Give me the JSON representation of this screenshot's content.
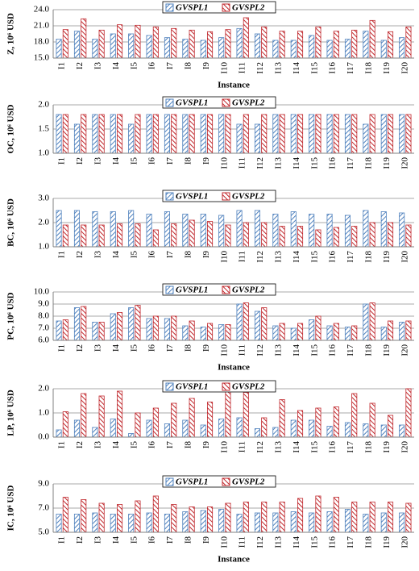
{
  "chart_data": [
    {
      "type": "bar",
      "y_label": "Z, 10⁶ USD",
      "x_label": "Instance",
      "categories": [
        "I1",
        "I2",
        "I3",
        "I4",
        "I5",
        "I6",
        "I7",
        "I8",
        "I9",
        "I10",
        "I11",
        "I12",
        "I13",
        "I14",
        "I15",
        "I16",
        "I17",
        "I18",
        "I19",
        "I20"
      ],
      "series": [
        {
          "name": "GVSPL1",
          "color": "#4f81bd",
          "values": [
            18.5,
            20.0,
            18.5,
            19.5,
            19.5,
            19.2,
            18.8,
            18.5,
            18.3,
            18.8,
            20.5,
            19.5,
            18.3,
            18.3,
            19.2,
            18.3,
            18.5,
            20.0,
            18.3,
            18.8
          ]
        },
        {
          "name": "GVSPL2",
          "color": "#c0282d",
          "values": [
            20.3,
            22.3,
            20.2,
            21.2,
            21.1,
            20.8,
            20.5,
            20.2,
            19.9,
            20.3,
            22.5,
            20.8,
            20.0,
            20.0,
            20.8,
            20.0,
            20.2,
            22.0,
            19.9,
            20.8
          ]
        }
      ],
      "ylim": [
        15,
        24
      ],
      "yticks": [
        {
          "value": 15,
          "label": "15.0"
        },
        {
          "value": 18,
          "label": "18.0"
        },
        {
          "value": 21,
          "label": "21.0"
        },
        {
          "value": 24,
          "label": "24.0"
        }
      ],
      "grid": true
    },
    {
      "type": "bar",
      "y_label": "OC, 10⁶ USD",
      "categories": [
        "I1",
        "I2",
        "I3",
        "I4",
        "I5",
        "I6",
        "I7",
        "I8",
        "I9",
        "I10",
        "I11",
        "I12",
        "I13",
        "I14",
        "I15",
        "I16",
        "I17",
        "I18",
        "I19",
        "I20"
      ],
      "series": [
        {
          "name": "GVSPL1",
          "color": "#4f81bd",
          "values": [
            1.8,
            1.6,
            1.8,
            1.8,
            1.6,
            1.8,
            1.8,
            1.8,
            1.8,
            1.8,
            1.6,
            1.6,
            1.8,
            1.8,
            1.8,
            1.8,
            1.8,
            1.6,
            1.8,
            1.8
          ]
        },
        {
          "name": "GVSPL2",
          "color": "#c0282d",
          "values": [
            1.8,
            1.8,
            1.8,
            1.8,
            1.8,
            1.8,
            1.8,
            1.8,
            1.8,
            1.8,
            1.8,
            1.8,
            1.8,
            1.8,
            1.8,
            1.8,
            1.8,
            1.8,
            1.8,
            1.8
          ]
        }
      ],
      "ylim": [
        1,
        2
      ],
      "yticks": [
        {
          "value": 1,
          "label": "1.0"
        },
        1.5,
        {
          "value": 2,
          "label": "2.0"
        }
      ],
      "grid": true
    },
    {
      "type": "bar",
      "y_label": "BC, 10⁶ USD",
      "categories": [
        "I1",
        "I2",
        "I3",
        "I4",
        "I5",
        "I6",
        "I7",
        "I8",
        "I9",
        "I10",
        "I11",
        "I12",
        "I13",
        "I14",
        "I15",
        "I16",
        "I17",
        "I18",
        "I19",
        "I20"
      ],
      "series": [
        {
          "name": "GVSPL1",
          "color": "#4f81bd",
          "values": [
            2.5,
            2.5,
            2.45,
            2.45,
            2.5,
            2.35,
            2.45,
            2.35,
            2.35,
            2.3,
            2.5,
            2.5,
            2.35,
            2.45,
            2.35,
            2.35,
            2.3,
            2.5,
            2.45,
            2.4
          ]
        },
        {
          "name": "GVSPL2",
          "color": "#c0282d",
          "values": [
            1.9,
            1.9,
            1.9,
            1.95,
            1.95,
            1.7,
            1.95,
            2.1,
            2.05,
            1.9,
            2.0,
            2.0,
            1.85,
            1.85,
            1.7,
            1.8,
            1.85,
            2.0,
            2.0,
            1.9
          ]
        }
      ],
      "ylim": [
        1,
        3
      ],
      "yticks": [
        {
          "value": 1,
          "label": "1.0"
        },
        {
          "value": 2,
          "label": "2.0"
        },
        {
          "value": 3,
          "label": "3.0"
        }
      ],
      "grid": true
    },
    {
      "type": "bar",
      "y_label": "PC, 10⁶ USD",
      "x_label": "Instance",
      "categories": [
        "I1",
        "I2",
        "I3",
        "I4",
        "I5",
        "I6",
        "I7",
        "I8",
        "I9",
        "I10",
        "I11",
        "I12",
        "I13",
        "I14",
        "I15",
        "I16",
        "I17",
        "I18",
        "I19",
        "I20"
      ],
      "series": [
        {
          "name": "GVSPL1",
          "color": "#4f81bd",
          "values": [
            7.6,
            8.7,
            7.5,
            8.2,
            8.7,
            7.8,
            7.8,
            7.2,
            7.1,
            7.3,
            9.0,
            8.4,
            7.2,
            7.0,
            7.7,
            7.2,
            7.1,
            9.0,
            7.1,
            7.5
          ]
        },
        {
          "name": "GVSPL2",
          "color": "#c0282d",
          "values": [
            7.7,
            8.8,
            7.5,
            8.3,
            8.9,
            8.0,
            8.0,
            7.6,
            7.4,
            7.3,
            9.1,
            8.7,
            7.4,
            7.4,
            8.0,
            7.4,
            7.2,
            9.1,
            7.6,
            7.6
          ]
        }
      ],
      "ylim": [
        6,
        10
      ],
      "yticks": [
        {
          "value": 6,
          "label": "6.0"
        },
        {
          "value": 7,
          "label": "7.0"
        },
        {
          "value": 8,
          "label": "8.0"
        },
        {
          "value": 9,
          "label": "9.0"
        },
        {
          "value": 10,
          "label": "10.0"
        }
      ],
      "grid": true
    },
    {
      "type": "bar",
      "y_label": "LP, 10⁶ USD",
      "categories": [
        "I1",
        "I2",
        "I3",
        "I4",
        "I5",
        "I6",
        "I7",
        "I8",
        "I9",
        "I10",
        "I11",
        "I12",
        "I13",
        "I14",
        "I15",
        "I16",
        "I17",
        "I18",
        "I19",
        "I20"
      ],
      "series": [
        {
          "name": "GVSPL1",
          "color": "#4f81bd",
          "values": [
            0.3,
            0.7,
            0.4,
            0.75,
            0.15,
            0.7,
            0.55,
            0.7,
            0.5,
            0.75,
            0.8,
            0.35,
            0.4,
            0.7,
            0.7,
            0.45,
            0.6,
            0.55,
            0.5,
            0.5
          ]
        },
        {
          "name": "GVSPL2",
          "color": "#c0282d",
          "values": [
            1.05,
            1.8,
            1.7,
            1.9,
            1.0,
            1.2,
            1.4,
            1.6,
            1.45,
            1.95,
            1.85,
            0.8,
            1.55,
            1.1,
            1.2,
            1.25,
            1.8,
            1.4,
            0.9,
            2.0
          ]
        }
      ],
      "ylim": [
        0,
        2
      ],
      "yticks": [
        {
          "value": 0,
          "label": "0.0"
        },
        {
          "value": 1,
          "label": "1.0"
        },
        {
          "value": 2,
          "label": "2.0"
        }
      ],
      "grid": true
    },
    {
      "type": "bar",
      "y_label": "IC, 10⁶ USD",
      "x_label": "Instance",
      "categories": [
        "I1",
        "I2",
        "I3",
        "I4",
        "I5",
        "I6",
        "I7",
        "I8",
        "I9",
        "I10",
        "I11",
        "I12",
        "I13",
        "I14",
        "I15",
        "I16",
        "I17",
        "I18",
        "I19",
        "I20"
      ],
      "series": [
        {
          "name": "GVSPL1",
          "color": "#4f81bd",
          "values": [
            6.5,
            6.5,
            6.6,
            6.5,
            6.5,
            6.6,
            6.5,
            6.7,
            6.8,
            6.9,
            6.5,
            6.6,
            6.6,
            6.7,
            6.6,
            6.7,
            6.9,
            6.5,
            6.6,
            6.6
          ]
        },
        {
          "name": "GVSPL2",
          "color": "#c0282d",
          "values": [
            7.9,
            7.7,
            7.4,
            7.3,
            7.6,
            8.0,
            7.3,
            7.1,
            7.1,
            7.4,
            7.5,
            7.5,
            7.5,
            7.8,
            8.0,
            7.9,
            7.5,
            7.5,
            7.5,
            7.4
          ]
        }
      ],
      "ylim": [
        5,
        9
      ],
      "yticks": [
        {
          "value": 5,
          "label": "5.0"
        },
        {
          "value": 7,
          "label": "7.0"
        },
        {
          "value": 9,
          "label": "9.0"
        }
      ],
      "grid": true
    }
  ]
}
